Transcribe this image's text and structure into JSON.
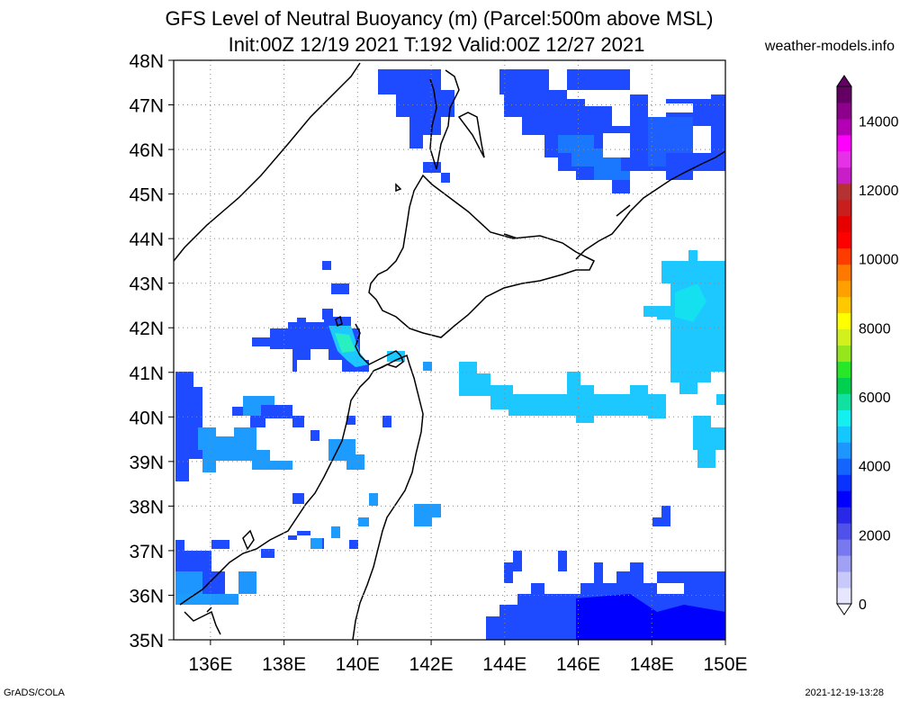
{
  "title_line1": "GFS Level of Neutral Buoyancy (m) (Parcel:500m above MSL)",
  "title_line2": "Init:00Z 12/19 2021 T:192 Valid:00Z 12/27 2021",
  "site": "weather-models.info",
  "footer_left": "GrADS/COLA",
  "footer_right": "2021-12-19-13:28",
  "map": {
    "lat_labels": [
      "48N",
      "47N",
      "46N",
      "45N",
      "44N",
      "43N",
      "42N",
      "41N",
      "40N",
      "39N",
      "38N",
      "37N",
      "36N",
      "35N"
    ],
    "lon_labels": [
      "136E",
      "138E",
      "140E",
      "142E",
      "144E",
      "146E",
      "148E",
      "150E"
    ],
    "lat_range": [
      35,
      48
    ],
    "lon_range": [
      135,
      150
    ],
    "grid": true
  },
  "colorbar": {
    "labels": [
      "14000",
      "12000",
      "10000",
      "8000",
      "6000",
      "4000",
      "2000",
      "0"
    ],
    "range": [
      0,
      15000
    ],
    "colors": [
      "#e6e6ff",
      "#c8c8fa",
      "#a0a0f5",
      "#7878f0",
      "#5050eb",
      "#2828e6",
      "#0000ff",
      "#0a32ff",
      "#1464ff",
      "#1e96ff",
      "#14c8ff",
      "#14f0f0",
      "#10e0a0",
      "#00d050",
      "#28e628",
      "#96e61e",
      "#d2f01e",
      "#ffff00",
      "#ffc800",
      "#ffa000",
      "#ff7800",
      "#ff3c00",
      "#ff0000",
      "#e60000",
      "#c81e1e",
      "#b43232",
      "#c81ec8",
      "#e632e6",
      "#ff00ff",
      "#b400b4",
      "#8c008c",
      "#640064"
    ]
  },
  "colors": {
    "blue": "#1e4bff",
    "medium_blue": "#1a78ff",
    "light_blue": "#1e9bff",
    "cyan": "#1cc8ff",
    "coast": "#000000"
  }
}
